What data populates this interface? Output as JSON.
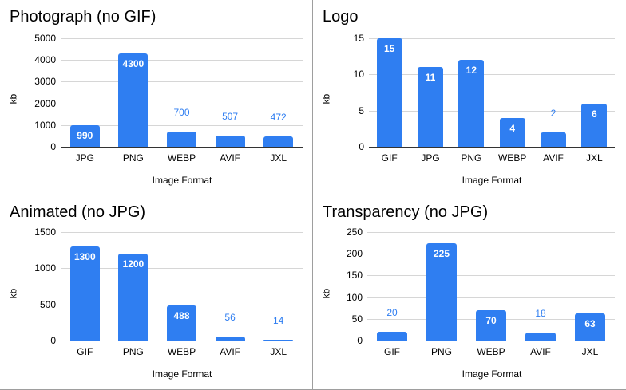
{
  "chart_data": [
    {
      "type": "bar",
      "title": "Photograph (no GIF)",
      "xlabel": "Image Format",
      "ylabel": "kb",
      "categories": [
        "JPG",
        "PNG",
        "WEBP",
        "AVIF",
        "JXL"
      ],
      "values": [
        990,
        4300,
        700,
        507,
        472
      ],
      "data_labels": [
        "990",
        "4300",
        "700",
        "507",
        "472"
      ],
      "yticks": [
        "0",
        "1000",
        "2000",
        "3000",
        "4000",
        "5000"
      ],
      "ylim": [
        0,
        5000
      ],
      "grid": true,
      "legend": "none",
      "bar_color": "#2f7ef1"
    },
    {
      "type": "bar",
      "title": "Logo",
      "xlabel": "Image Format",
      "ylabel": "kb",
      "categories": [
        "GIF",
        "JPG",
        "PNG",
        "WEBP",
        "AVIF",
        "JXL"
      ],
      "values": [
        15,
        11,
        12,
        4,
        2,
        6
      ],
      "data_labels": [
        "15",
        "11",
        "12",
        "4",
        "2",
        "6"
      ],
      "yticks": [
        "0",
        "5",
        "10",
        "15"
      ],
      "ylim": [
        0,
        15
      ],
      "grid": true,
      "legend": "none",
      "bar_color": "#2f7ef1"
    },
    {
      "type": "bar",
      "title": "Animated (no JPG)",
      "xlabel": "Image Format",
      "ylabel": "kb",
      "categories": [
        "GIF",
        "PNG",
        "WEBP",
        "AVIF",
        "JXL"
      ],
      "values": [
        1300,
        1200,
        488,
        56,
        14
      ],
      "data_labels": [
        "1300",
        "1200",
        "488",
        "56",
        "14"
      ],
      "yticks": [
        "0",
        "500",
        "1000",
        "1500"
      ],
      "ylim": [
        0,
        1500
      ],
      "grid": true,
      "legend": "none",
      "bar_color": "#2f7ef1"
    },
    {
      "type": "bar",
      "title": "Transparency (no JPG)",
      "xlabel": "Image Format",
      "ylabel": "kb",
      "categories": [
        "GIF",
        "PNG",
        "WEBP",
        "AVIF",
        "JXL"
      ],
      "values": [
        20,
        225,
        70,
        18,
        63
      ],
      "data_labels": [
        "20",
        "225",
        "70",
        "18",
        "63"
      ],
      "yticks": [
        "0",
        "50",
        "100",
        "150",
        "200",
        "250"
      ],
      "ylim": [
        0,
        250
      ],
      "grid": true,
      "legend": "none",
      "bar_color": "#2f7ef1"
    }
  ]
}
